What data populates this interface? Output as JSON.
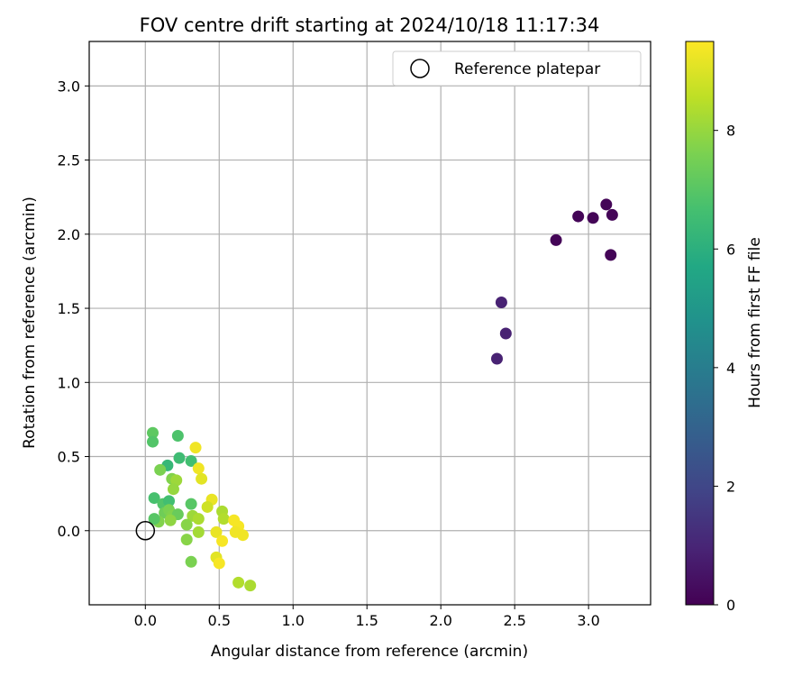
{
  "chart_data": {
    "type": "scatter",
    "title": "FOV centre drift starting at 2024/10/18 11:17:34",
    "xlabel": "Angular distance from reference (arcmin)",
    "ylabel": "Rotation from reference (arcmin)",
    "xlim": [
      -0.38,
      3.42
    ],
    "ylim": [
      -0.5,
      3.3
    ],
    "xticks": [
      "0.0",
      "0.5",
      "1.0",
      "1.5",
      "2.0",
      "2.5",
      "3.0"
    ],
    "yticks": [
      "0.0",
      "0.5",
      "1.0",
      "1.5",
      "2.0",
      "2.5",
      "3.0"
    ],
    "grid": true,
    "legend": {
      "placement": "top-right",
      "entries": [
        "Reference platepar"
      ]
    },
    "reference_point": {
      "x": 0.0,
      "y": 0.0,
      "label": "Reference platepar"
    },
    "colorbar": {
      "label": "Hours from first FF file",
      "range": [
        0,
        9.5
      ],
      "ticks": [
        "0",
        "2",
        "4",
        "6",
        "8"
      ],
      "colormap": "viridis"
    },
    "points": [
      {
        "x": 3.12,
        "y": 2.2,
        "h": 0.1
      },
      {
        "x": 2.93,
        "y": 2.12,
        "h": 0.1
      },
      {
        "x": 3.03,
        "y": 2.11,
        "h": 0.1
      },
      {
        "x": 3.16,
        "y": 2.13,
        "h": 0.1
      },
      {
        "x": 2.78,
        "y": 1.96,
        "h": 0.1
      },
      {
        "x": 3.15,
        "y": 1.86,
        "h": 0.1
      },
      {
        "x": 2.41,
        "y": 1.54,
        "h": 0.9
      },
      {
        "x": 2.44,
        "y": 1.33,
        "h": 0.9
      },
      {
        "x": 2.38,
        "y": 1.16,
        "h": 0.9
      },
      {
        "x": 0.05,
        "y": 0.66,
        "h": 7.1
      },
      {
        "x": 0.05,
        "y": 0.6,
        "h": 6.9
      },
      {
        "x": 0.22,
        "y": 0.64,
        "h": 6.8
      },
      {
        "x": 0.23,
        "y": 0.49,
        "h": 6.5
      },
      {
        "x": 0.31,
        "y": 0.47,
        "h": 6.6
      },
      {
        "x": 0.15,
        "y": 0.44,
        "h": 6.3
      },
      {
        "x": 0.1,
        "y": 0.41,
        "h": 7.6
      },
      {
        "x": 0.34,
        "y": 0.56,
        "h": 9.3
      },
      {
        "x": 0.36,
        "y": 0.42,
        "h": 9.3
      },
      {
        "x": 0.38,
        "y": 0.35,
        "h": 9.1
      },
      {
        "x": 0.18,
        "y": 0.35,
        "h": 7.7
      },
      {
        "x": 0.21,
        "y": 0.34,
        "h": 8.1
      },
      {
        "x": 0.19,
        "y": 0.28,
        "h": 8.0
      },
      {
        "x": 0.06,
        "y": 0.22,
        "h": 6.7
      },
      {
        "x": 0.12,
        "y": 0.18,
        "h": 6.9
      },
      {
        "x": 0.16,
        "y": 0.2,
        "h": 6.6
      },
      {
        "x": 0.31,
        "y": 0.18,
        "h": 7.0
      },
      {
        "x": 0.45,
        "y": 0.21,
        "h": 9.2
      },
      {
        "x": 0.42,
        "y": 0.16,
        "h": 8.8
      },
      {
        "x": 0.13,
        "y": 0.12,
        "h": 7.4
      },
      {
        "x": 0.16,
        "y": 0.14,
        "h": 7.6
      },
      {
        "x": 0.18,
        "y": 0.1,
        "h": 7.7
      },
      {
        "x": 0.22,
        "y": 0.11,
        "h": 7.3
      },
      {
        "x": 0.09,
        "y": 0.06,
        "h": 7.7
      },
      {
        "x": 0.06,
        "y": 0.08,
        "h": 7.0
      },
      {
        "x": 0.17,
        "y": 0.07,
        "h": 7.9
      },
      {
        "x": 0.32,
        "y": 0.1,
        "h": 8.1
      },
      {
        "x": 0.36,
        "y": 0.08,
        "h": 8.3
      },
      {
        "x": 0.28,
        "y": 0.04,
        "h": 7.8
      },
      {
        "x": 0.36,
        "y": -0.01,
        "h": 8.2
      },
      {
        "x": 0.52,
        "y": 0.13,
        "h": 8.3
      },
      {
        "x": 0.53,
        "y": 0.08,
        "h": 8.4
      },
      {
        "x": 0.6,
        "y": 0.07,
        "h": 9.4
      },
      {
        "x": 0.63,
        "y": 0.03,
        "h": 9.4
      },
      {
        "x": 0.61,
        "y": -0.01,
        "h": 9.3
      },
      {
        "x": 0.66,
        "y": -0.03,
        "h": 9.3
      },
      {
        "x": 0.48,
        "y": -0.01,
        "h": 9.2
      },
      {
        "x": 0.52,
        "y": -0.07,
        "h": 9.4
      },
      {
        "x": 0.28,
        "y": -0.06,
        "h": 7.8
      },
      {
        "x": 0.48,
        "y": -0.18,
        "h": 9.1
      },
      {
        "x": 0.5,
        "y": -0.22,
        "h": 9.4
      },
      {
        "x": 0.31,
        "y": -0.21,
        "h": 7.6
      },
      {
        "x": 0.63,
        "y": -0.35,
        "h": 8.4
      },
      {
        "x": 0.71,
        "y": -0.37,
        "h": 8.3
      }
    ]
  }
}
